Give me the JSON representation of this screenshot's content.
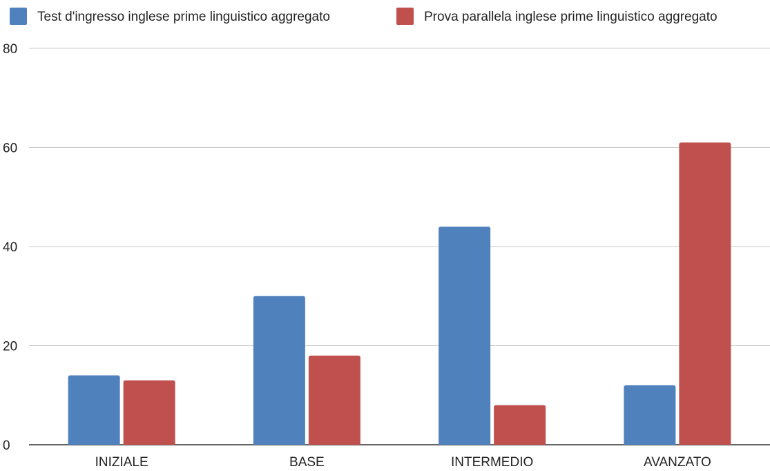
{
  "chart_data": {
    "type": "bar",
    "title": "",
    "xlabel": "",
    "ylabel": "",
    "categories": [
      "INIZIALE",
      "BASE",
      "INTERMEDIO",
      "AVANZATO"
    ],
    "series": [
      {
        "name": "Test d'ingresso inglese prime linguistico aggregato",
        "color": "#4F81BD",
        "values": [
          14,
          30,
          44,
          12
        ]
      },
      {
        "name": "Prova parallela inglese prime linguistico aggregato",
        "color": "#C0504D",
        "values": [
          13,
          18,
          8,
          61
        ]
      }
    ],
    "ylim": [
      0,
      80
    ],
    "yticks": [
      0,
      20,
      40,
      60,
      80
    ],
    "grid": true,
    "legend": "top"
  }
}
